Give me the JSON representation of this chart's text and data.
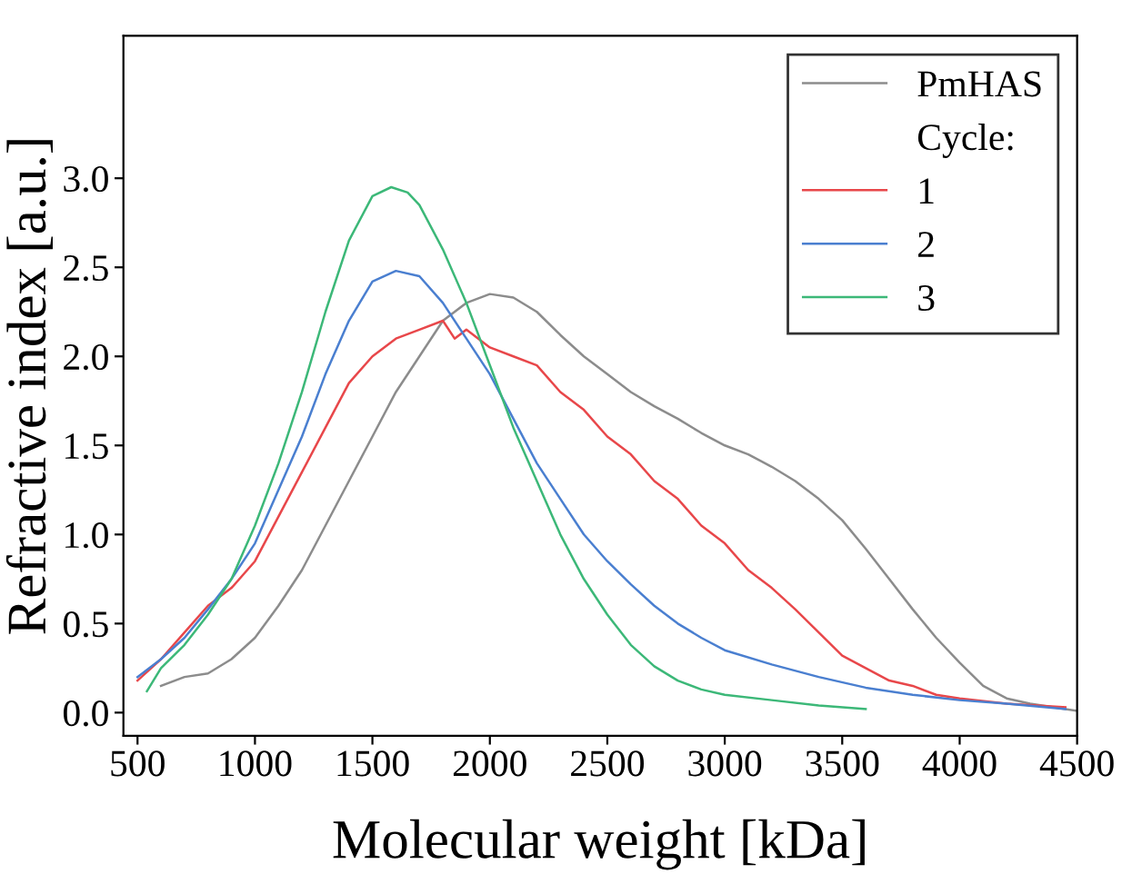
{
  "chart_data": {
    "type": "line",
    "xlabel": "Molecular weight [kDa]",
    "ylabel": "Refractive index [a.u.]",
    "legend_title": "Cycle:",
    "legend": "top right",
    "grid": false,
    "marker": "none",
    "line_style": "solid",
    "xlim": [
      440,
      4500
    ],
    "ylim": [
      -0.13,
      3.8
    ],
    "xticks": [
      500,
      1000,
      1500,
      2000,
      2500,
      3000,
      3500,
      4000,
      4500
    ],
    "yticks": [
      {
        "value": 0,
        "label": "0.0"
      },
      0.5,
      {
        "value": 1,
        "label": "1.0"
      },
      1.5,
      {
        "value": 2,
        "label": "2.0"
      },
      2.5,
      {
        "value": 3,
        "label": "3.0"
      }
    ],
    "series": [
      {
        "name": "PmHAS",
        "color": "#8c8c8c",
        "x": [
          600,
          700,
          800,
          900,
          1000,
          1100,
          1200,
          1300,
          1400,
          1500,
          1600,
          1700,
          1800,
          1900,
          2000,
          2100,
          2200,
          2300,
          2400,
          2500,
          2600,
          2700,
          2800,
          2900,
          3000,
          3100,
          3200,
          3300,
          3400,
          3500,
          3600,
          3700,
          3800,
          3900,
          4000,
          4100,
          4200,
          4300,
          4400,
          4500
        ],
        "values": [
          0.15,
          0.2,
          0.22,
          0.3,
          0.42,
          0.6,
          0.8,
          1.05,
          1.3,
          1.55,
          1.8,
          2.0,
          2.2,
          2.3,
          2.35,
          2.33,
          2.25,
          2.12,
          2.0,
          1.9,
          1.8,
          1.72,
          1.65,
          1.57,
          1.5,
          1.45,
          1.38,
          1.3,
          1.2,
          1.08,
          0.92,
          0.75,
          0.58,
          0.42,
          0.28,
          0.15,
          0.08,
          0.05,
          0.03,
          0.01
        ]
      },
      {
        "name": "1",
        "color": "#e8474a",
        "x": [
          500,
          600,
          700,
          800,
          900,
          1000,
          1100,
          1200,
          1300,
          1400,
          1500,
          1600,
          1700,
          1800,
          1850,
          1900,
          2000,
          2100,
          2200,
          2300,
          2400,
          2500,
          2600,
          2700,
          2800,
          2900,
          3000,
          3100,
          3200,
          3300,
          3400,
          3500,
          3600,
          3700,
          3800,
          3900,
          4000,
          4200,
          4450
        ],
        "values": [
          0.18,
          0.3,
          0.45,
          0.6,
          0.7,
          0.85,
          1.1,
          1.35,
          1.6,
          1.85,
          2.0,
          2.1,
          2.15,
          2.2,
          2.1,
          2.15,
          2.05,
          2.0,
          1.95,
          1.8,
          1.7,
          1.55,
          1.45,
          1.3,
          1.2,
          1.05,
          0.95,
          0.8,
          0.7,
          0.58,
          0.45,
          0.32,
          0.25,
          0.18,
          0.15,
          0.1,
          0.08,
          0.05,
          0.03
        ]
      },
      {
        "name": "2",
        "color": "#4a7fd0",
        "x": [
          500,
          600,
          700,
          800,
          900,
          1000,
          1100,
          1200,
          1300,
          1400,
          1500,
          1600,
          1700,
          1800,
          1900,
          2000,
          2100,
          2200,
          2300,
          2400,
          2500,
          2600,
          2700,
          2800,
          2900,
          3000,
          3200,
          3400,
          3600,
          3800,
          4000,
          4200,
          4450
        ],
        "values": [
          0.2,
          0.3,
          0.42,
          0.58,
          0.75,
          0.95,
          1.25,
          1.55,
          1.9,
          2.2,
          2.42,
          2.48,
          2.45,
          2.3,
          2.1,
          1.9,
          1.65,
          1.4,
          1.2,
          1.0,
          0.85,
          0.72,
          0.6,
          0.5,
          0.42,
          0.35,
          0.27,
          0.2,
          0.14,
          0.1,
          0.07,
          0.05,
          0.02
        ]
      },
      {
        "name": "3",
        "color": "#3cb878",
        "x": [
          540,
          600,
          700,
          800,
          900,
          1000,
          1100,
          1200,
          1300,
          1400,
          1500,
          1580,
          1650,
          1700,
          1800,
          1900,
          2000,
          2100,
          2200,
          2300,
          2400,
          2500,
          2600,
          2700,
          2800,
          2900,
          3000,
          3200,
          3400,
          3600
        ],
        "values": [
          0.12,
          0.25,
          0.38,
          0.55,
          0.75,
          1.05,
          1.4,
          1.8,
          2.25,
          2.65,
          2.9,
          2.95,
          2.92,
          2.85,
          2.6,
          2.3,
          1.95,
          1.6,
          1.3,
          1.0,
          0.75,
          0.55,
          0.38,
          0.26,
          0.18,
          0.13,
          0.1,
          0.07,
          0.04,
          0.02
        ]
      }
    ]
  }
}
